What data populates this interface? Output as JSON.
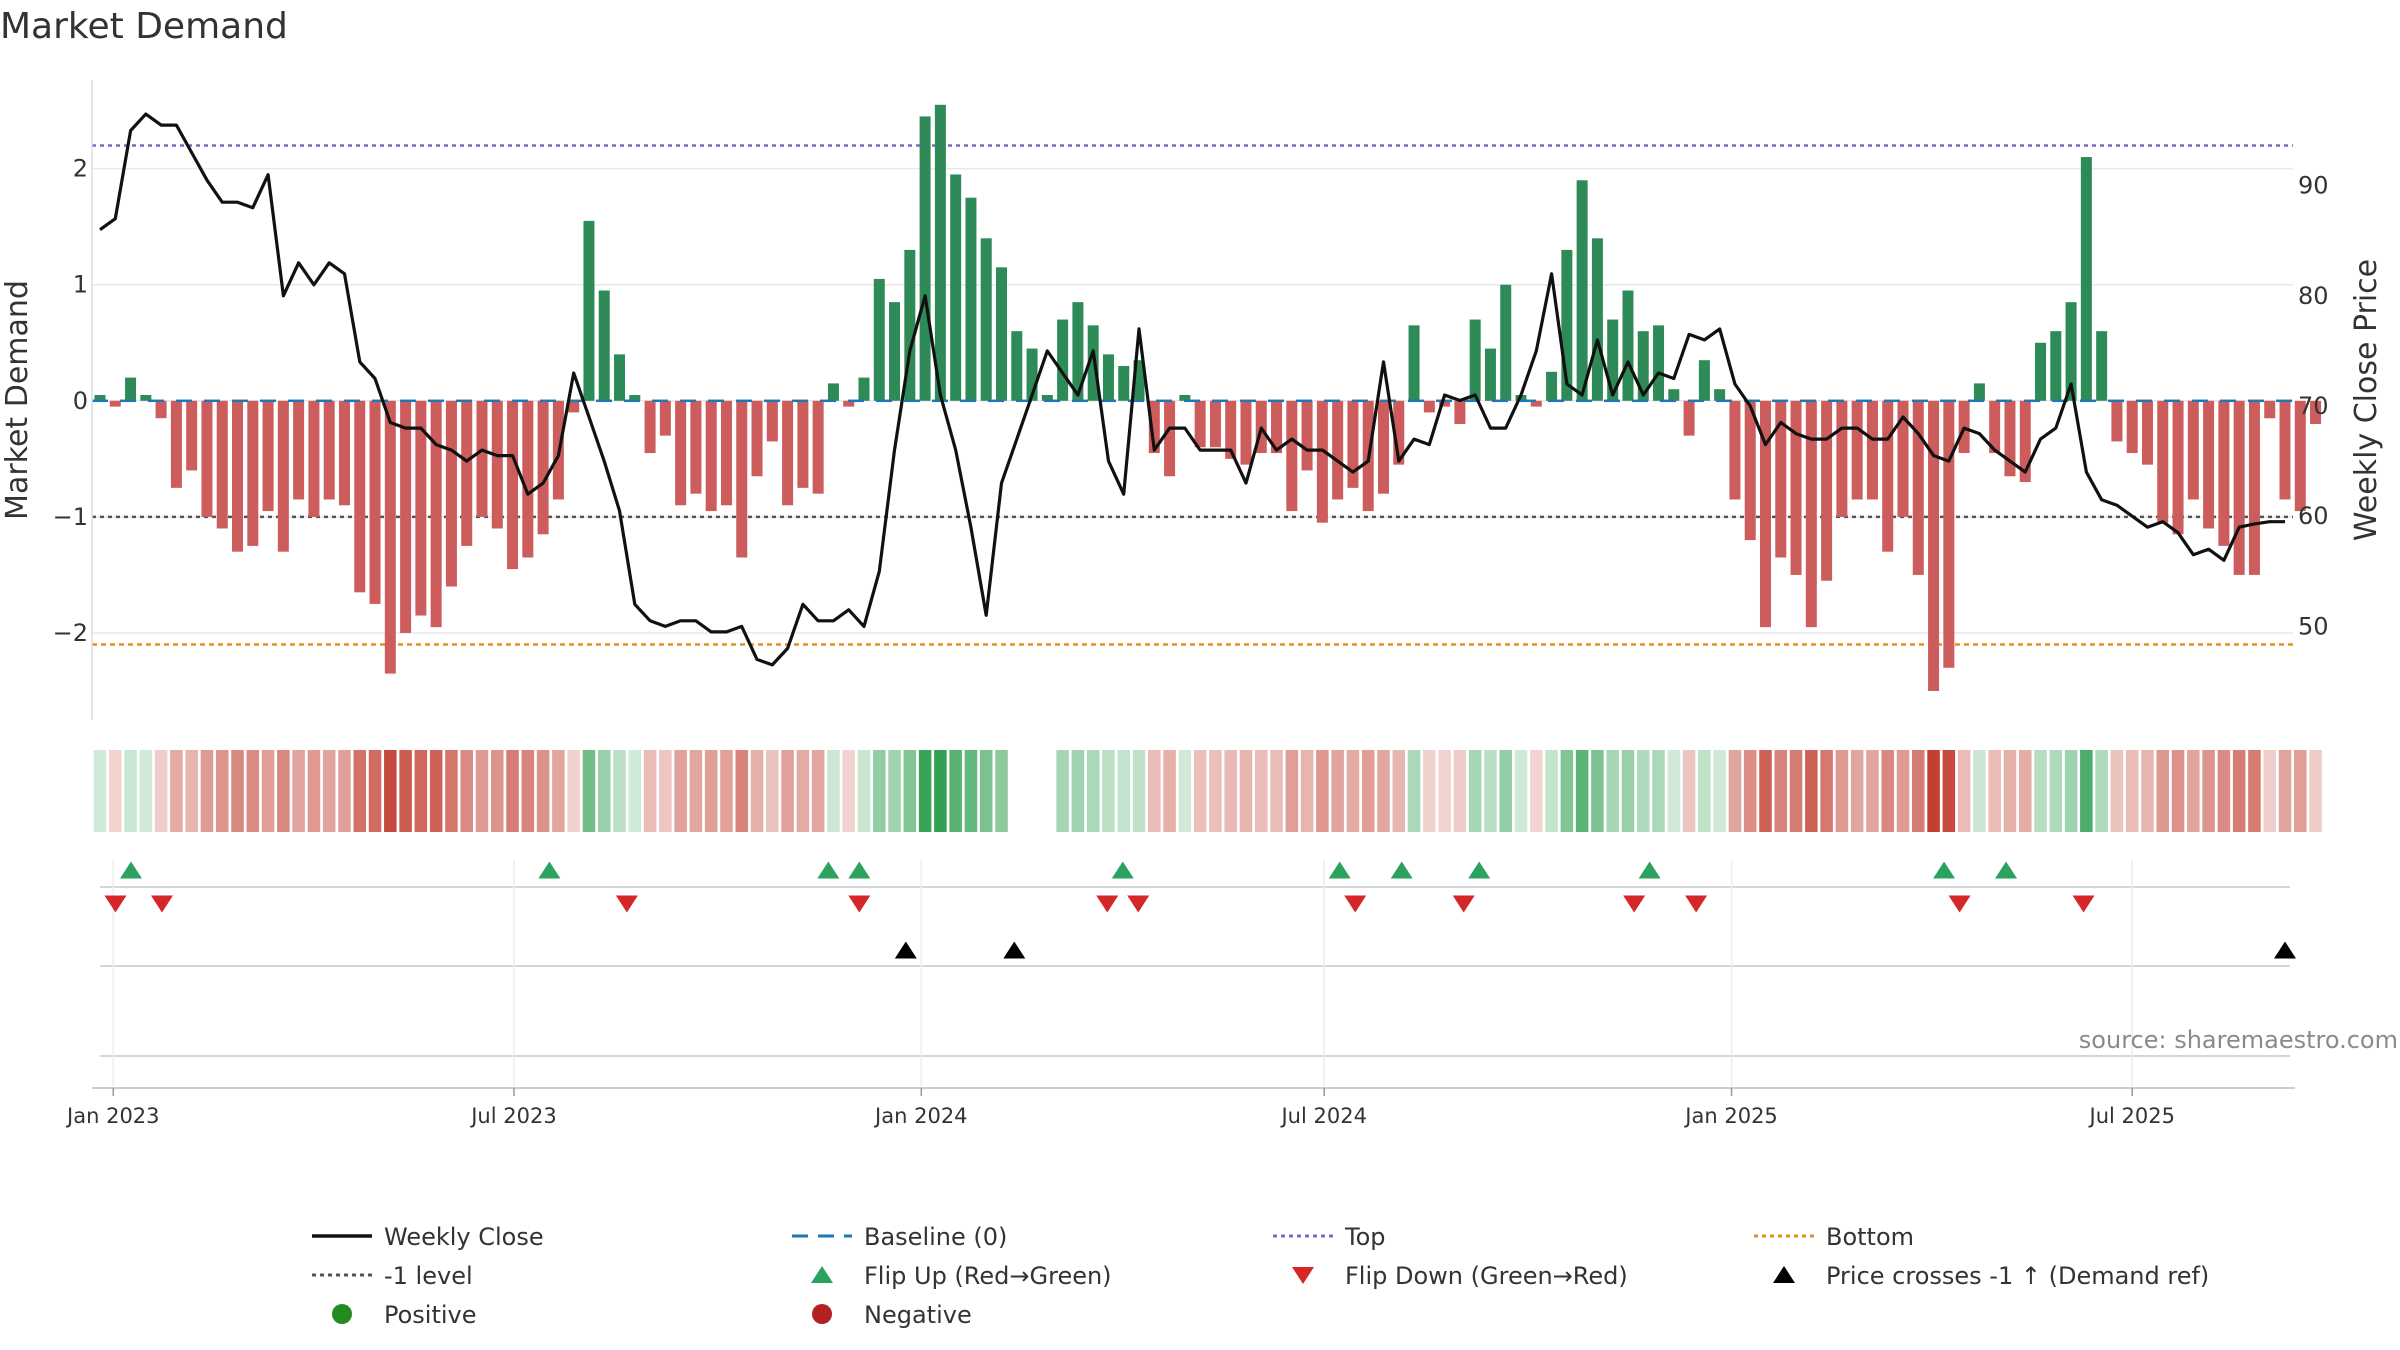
{
  "chart_data": {
    "type": "bar",
    "title": "Market Demand",
    "ylabel": "Market Demand",
    "y2label": "Weekly Close Price",
    "source": "source: sharemaestro.com",
    "ylim": [
      -2.75,
      2.85
    ],
    "y2lim": [
      41.5,
      100.5
    ],
    "yticks": [
      {
        "value": 2,
        "label": "2"
      },
      {
        "value": 1,
        "label": "1"
      },
      {
        "value": 0,
        "label": "0"
      },
      {
        "value": -1,
        "label": "−1"
      },
      {
        "value": -2,
        "label": "−2"
      }
    ],
    "y2ticks": [
      {
        "value": 90,
        "label": "90"
      },
      {
        "value": 80,
        "label": "80"
      },
      {
        "value": 70,
        "label": "70"
      },
      {
        "value": 60,
        "label": "60"
      },
      {
        "value": 50,
        "label": "50"
      }
    ],
    "x_start": "2022-12-26",
    "x_end": "2025-09-08",
    "week_count": 144,
    "xticks": [
      {
        "date": "2023-01-01",
        "label": "Jan 2023"
      },
      {
        "date": "2023-07-01",
        "label": "Jul 2023"
      },
      {
        "date": "2024-01-01",
        "label": "Jan 2024"
      },
      {
        "date": "2024-07-01",
        "label": "Jul 2024"
      },
      {
        "date": "2025-01-01",
        "label": "Jan 2025"
      },
      {
        "date": "2025-07-01",
        "label": "Jul 2025"
      }
    ],
    "reference_lines": {
      "top": 2.2,
      "bottom": -2.1,
      "level": -1,
      "baseline": 0
    },
    "demand": [
      0.05,
      -0.05,
      0.2,
      0.05,
      -0.15,
      -0.75,
      -0.6,
      -1.0,
      -1.1,
      -1.3,
      -1.25,
      -0.95,
      -1.3,
      -0.85,
      -1.0,
      -0.85,
      -0.9,
      -1.65,
      -1.75,
      -2.35,
      -2.0,
      -1.85,
      -1.95,
      -1.6,
      -1.25,
      -1.0,
      -1.1,
      -1.45,
      -1.35,
      -1.15,
      -0.85,
      -0.1,
      1.55,
      0.95,
      0.4,
      0.05,
      -0.45,
      -0.3,
      -0.9,
      -0.8,
      -0.95,
      -0.9,
      -1.35,
      -0.65,
      -0.35,
      -0.9,
      -0.75,
      -0.8,
      0.15,
      -0.05,
      0.2,
      1.05,
      0.85,
      1.3,
      2.45,
      2.55,
      1.95,
      1.75,
      1.4,
      1.15,
      0.6,
      0.45,
      0.05,
      0.7,
      0.85,
      0.65,
      0.4,
      0.3,
      0.35,
      -0.45,
      -0.65,
      0.05,
      -0.4,
      -0.4,
      -0.5,
      -0.55,
      -0.45,
      -0.45,
      -0.95,
      -0.6,
      -1.05,
      -0.85,
      -0.75,
      -0.95,
      -0.8,
      -0.55,
      0.65,
      -0.1,
      -0.05,
      -0.2,
      0.7,
      0.45,
      1.0,
      0.05,
      -0.05,
      0.25,
      1.3,
      1.9,
      1.4,
      0.7,
      0.95,
      0.6,
      0.65,
      0.1,
      -0.3,
      0.35,
      0.1,
      -0.85,
      -1.2,
      -1.95,
      -1.35,
      -1.5,
      -1.95,
      -1.55,
      -1.0,
      -0.85,
      -0.85,
      -1.3,
      -1.0,
      -1.5,
      -2.5,
      -2.3,
      -0.45,
      0.15,
      -0.45,
      -0.65,
      -0.7,
      0.5,
      0.6,
      0.85,
      2.1,
      0.6,
      -0.35,
      -0.45,
      -0.55,
      -1.05,
      -1.15,
      -0.85,
      -1.1,
      -1.25,
      -1.5,
      -1.5,
      -0.15,
      -0.85,
      -0.95,
      -0.2
    ],
    "price": [
      86,
      87,
      95,
      96.5,
      95.5,
      95.5,
      93,
      90.5,
      88.5,
      88.5,
      88,
      91,
      80,
      83,
      81,
      83,
      82,
      74,
      72.5,
      68.5,
      68,
      68,
      66.5,
      66,
      65,
      66,
      65.5,
      65.5,
      62,
      63,
      65.5,
      73,
      69,
      65,
      60.5,
      52,
      50.5,
      50,
      50.5,
      50.5,
      49.5,
      49.5,
      50,
      47,
      46.5,
      48,
      52,
      50.5,
      50.5,
      51.5,
      50,
      55,
      66,
      75,
      80,
      71,
      66,
      59,
      51,
      63,
      67,
      71,
      75,
      73,
      71,
      75,
      65,
      62,
      77,
      66,
      68,
      68,
      66,
      66,
      66,
      63,
      68,
      66,
      67,
      66,
      66,
      65,
      64,
      65,
      74,
      65,
      67,
      66.5,
      71,
      70.5,
      71,
      68,
      68,
      71,
      75,
      82,
      72,
      71,
      76,
      71,
      74,
      71,
      73,
      72.5,
      76.5,
      76,
      77,
      72,
      70,
      66.5,
      68.5,
      67.5,
      67,
      67,
      68,
      68,
      67,
      67,
      69,
      67.5,
      65.5,
      65,
      68,
      67.5,
      66,
      65,
      64,
      67,
      68,
      72,
      64,
      61.5,
      61,
      60,
      59,
      59.5,
      58.5,
      56.5,
      57,
      56,
      59,
      59.3,
      59.5,
      59.5
    ],
    "heat_missing": [
      60,
      61,
      62
    ],
    "flip_up": [
      "2023-01-09",
      "2023-07-17",
      "2023-11-20",
      "2023-12-04",
      "2024-04-01",
      "2024-07-08",
      "2024-08-05",
      "2024-09-09",
      "2024-11-25",
      "2025-04-07",
      "2025-05-05"
    ],
    "flip_down": [
      "2023-01-02",
      "2023-01-23",
      "2023-08-21",
      "2023-12-04",
      "2024-03-25",
      "2024-04-08",
      "2024-07-15",
      "2024-09-02",
      "2024-11-18",
      "2024-12-16",
      "2025-04-14",
      "2025-06-09"
    ],
    "price_crosses": [
      "2023-12-25",
      "2024-02-12",
      "2025-09-08"
    ],
    "legend": [
      {
        "key": "weekly-close",
        "label": "Weekly Close",
        "swatch": "line",
        "color": "#111111"
      },
      {
        "key": "baseline",
        "label": "Baseline (0)",
        "swatch": "dash",
        "color": "#1f77b4"
      },
      {
        "key": "top",
        "label": "Top",
        "swatch": "dot",
        "color": "#7b68c8"
      },
      {
        "key": "bottom",
        "label": "Bottom",
        "swatch": "dot",
        "color": "#e0921f"
      },
      {
        "key": "minus-one-level",
        "label": "-1 level",
        "swatch": "dot",
        "color": "#555555"
      },
      {
        "key": "flip-up",
        "label": "Flip Up (Red→Green)",
        "swatch": "tri-up",
        "color": "#2ca25f"
      },
      {
        "key": "flip-down",
        "label": "Flip Down (Green→Red)",
        "swatch": "tri-down",
        "color": "#d62728"
      },
      {
        "key": "price-crosses",
        "label": "Price crosses -1 ↑ (Demand ref)",
        "swatch": "tri-up",
        "color": "#000000"
      },
      {
        "key": "positive",
        "label": "Positive",
        "swatch": "circle",
        "color": "#228b22"
      },
      {
        "key": "negative",
        "label": "Negative",
        "swatch": "circle",
        "color": "#b22222"
      }
    ]
  },
  "colors": {
    "positive_bar": "#2e8b57",
    "negative_bar": "#cd5c5c",
    "price_line": "#111111",
    "top_line": "#7b68c8",
    "bottom_line": "#e0921f",
    "level_line": "#555555",
    "baseline": "#1f77b4",
    "heat_green": "#2e9e4f",
    "heat_red": "#c0392b",
    "grid": "#e8e8e8",
    "axis": "#dddddd"
  }
}
